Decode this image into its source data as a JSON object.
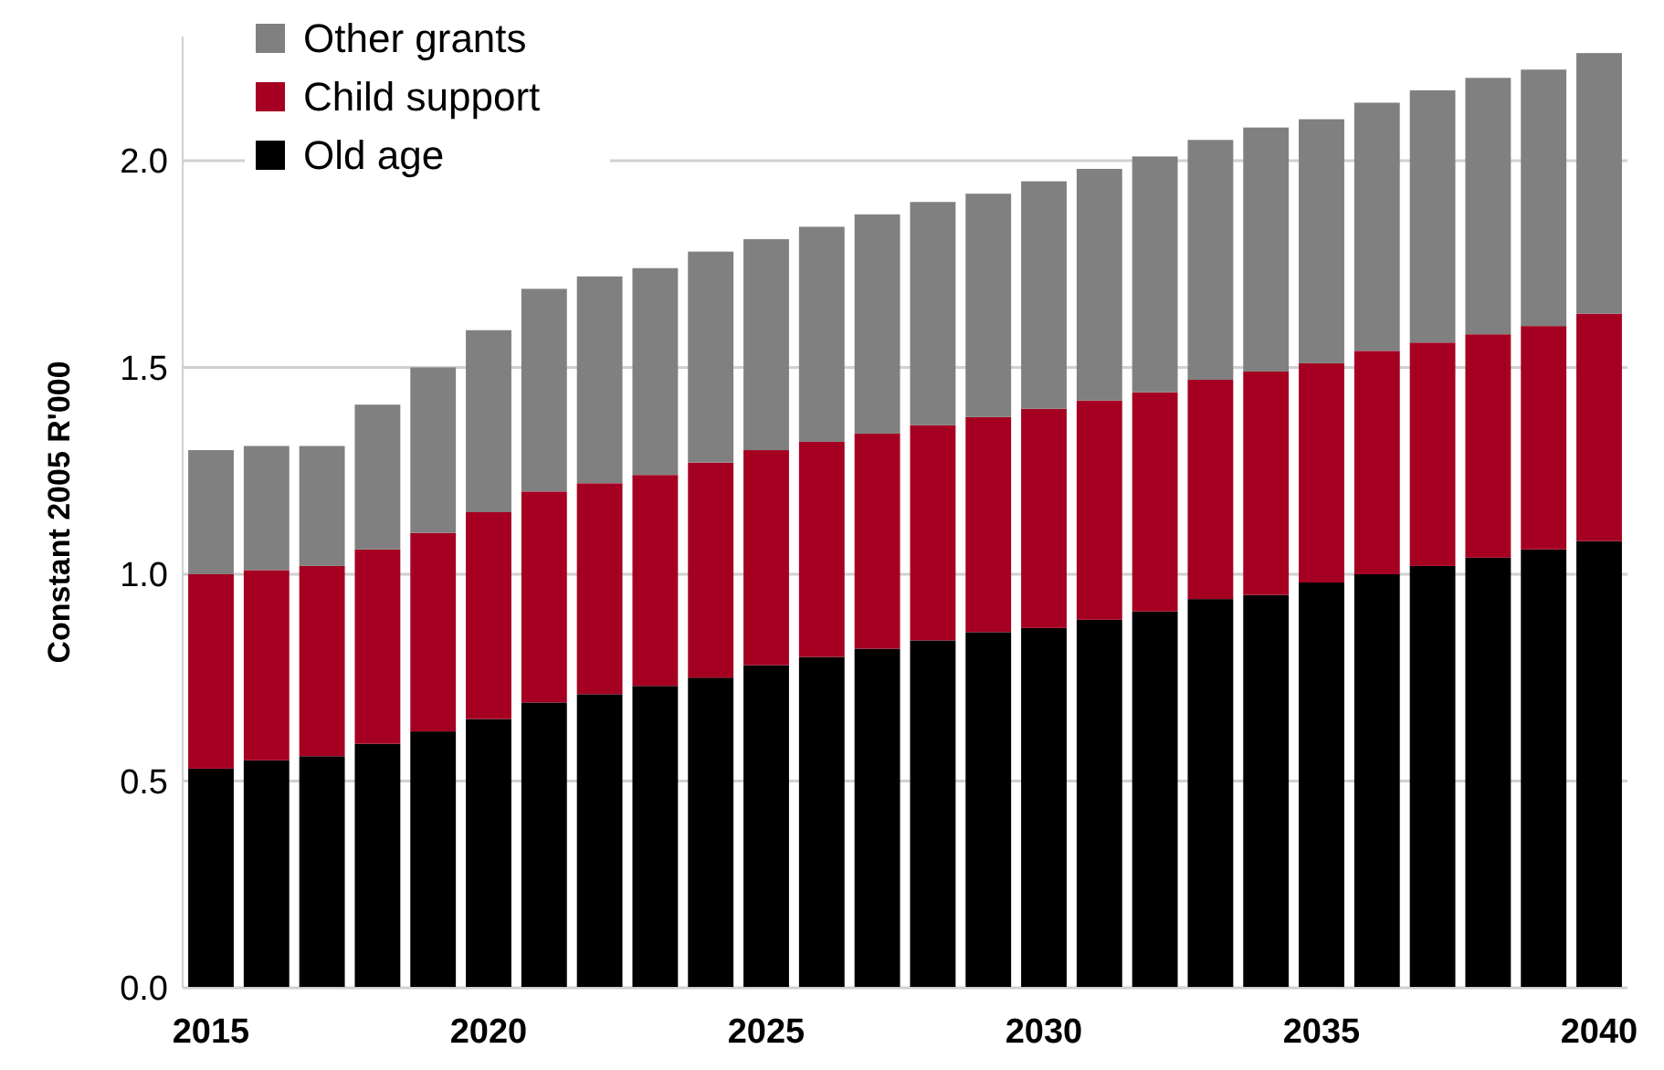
{
  "chart_data": {
    "type": "bar",
    "stacked": true,
    "ylabel": "Constant 2005 R'000",
    "categories": [
      "2015",
      null,
      null,
      null,
      null,
      "2020",
      null,
      null,
      null,
      null,
      "2025",
      null,
      null,
      null,
      null,
      "2030",
      null,
      null,
      null,
      null,
      "2035",
      null,
      null,
      null,
      null,
      "2040"
    ],
    "series": [
      {
        "name": "Old age",
        "color": "#000000",
        "values": [
          0.53,
          0.55,
          0.56,
          0.59,
          0.62,
          0.65,
          0.69,
          0.71,
          0.73,
          0.75,
          0.78,
          0.8,
          0.82,
          0.84,
          0.86,
          0.87,
          0.89,
          0.91,
          0.94,
          0.95,
          0.98,
          1.0,
          1.02,
          1.04,
          1.06,
          1.08
        ]
      },
      {
        "name": "Child support",
        "color": "#a50021",
        "values": [
          0.47,
          0.46,
          0.46,
          0.47,
          0.48,
          0.5,
          0.51,
          0.51,
          0.51,
          0.52,
          0.52,
          0.52,
          0.52,
          0.52,
          0.52,
          0.53,
          0.53,
          0.53,
          0.53,
          0.54,
          0.53,
          0.54,
          0.54,
          0.54,
          0.54,
          0.55
        ]
      },
      {
        "name": "Other grants",
        "color": "#808080",
        "values": [
          0.3,
          0.3,
          0.29,
          0.35,
          0.4,
          0.44,
          0.49,
          0.5,
          0.5,
          0.51,
          0.51,
          0.52,
          0.53,
          0.54,
          0.54,
          0.55,
          0.56,
          0.57,
          0.58,
          0.59,
          0.59,
          0.6,
          0.61,
          0.62,
          0.62,
          0.63
        ]
      }
    ],
    "ylim": [
      0,
      2.3
    ],
    "yticks": [
      {
        "value": 0,
        "label": "0.0"
      },
      {
        "value": 0.5,
        "label": "0.5"
      },
      {
        "value": 1,
        "label": "1.0"
      },
      {
        "value": 1.5,
        "label": "1.5"
      },
      {
        "value": 2,
        "label": "2.0"
      }
    ],
    "grid": "y",
    "legend": "top left"
  }
}
